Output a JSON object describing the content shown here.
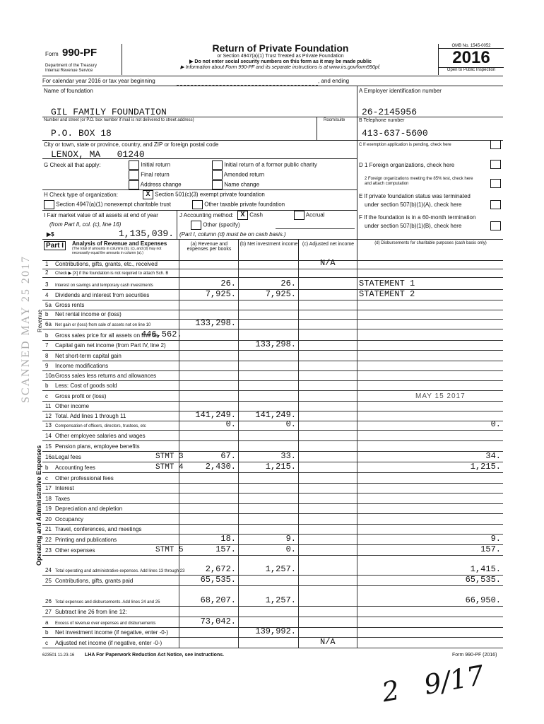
{
  "header": {
    "form_label": "Form",
    "form_number": "990-PF",
    "dept": "Department of the Treasury",
    "irs": "Internal Revenue Service",
    "title": "Return of Private Foundation",
    "subtitle": "or Section 4947(a)(1) Trust Treated as Private Foundation",
    "note1": "▶ Do not enter social security numbers on this form as it may be made public",
    "note2": "▶ Information about Form 990-PF and its separate instructions is at www.irs.gov/form990pf.",
    "omb": "OMB No. 1545-0052",
    "year": "2016",
    "open": "Open to Public Inspection",
    "calendar": "For calendar year 2016 or tax year beginning",
    "and_ending": ", and ending"
  },
  "entity": {
    "name_label": "Name of foundation",
    "name": "GIL FAMILY FOUNDATION",
    "street_label": "Number and street (or P.O. box number if mail is not delivered to street address)",
    "room_label": "Room/suite",
    "street": "P.O. BOX 18",
    "city_label": "City or town, state or province, country, and ZIP or foreign postal code",
    "city": "LENOX, MA   01240",
    "ein_label": "A  Employer identification number",
    "ein": "26-2145956",
    "phone_label": "B  Telephone number",
    "phone": "413-637-5600",
    "c_label": "C  If exemption application is pending, check here",
    "d1_label": "D  1  Foreign organizations, check here",
    "d2_label": "2  Foreign organizations meeting the 85% test, check here and attach computation",
    "e_label1": "E  If private foundation status was terminated",
    "e_label2": "under section 507(b)(1)(A), check here",
    "f_label1": "F  If the foundation is in a 60-month termination",
    "f_label2": "under section 507(b)(1)(B), check here"
  },
  "g": {
    "label": "G  Check all that apply:",
    "items": [
      "Initial return",
      "Final return",
      "Address change",
      "Initial return of a former public charity",
      "Amended return",
      "Name change"
    ]
  },
  "h": {
    "label": "H  Check type of organization:",
    "opt1": "Section 501(c)(3) exempt private foundation",
    "opt1_mark": "X",
    "opt2": "Section 4947(a)(1) nonexempt charitable trust",
    "opt3": "Other taxable private foundation"
  },
  "i": {
    "label": "I  Fair market value of all assets at end of year",
    "sub": "(from Part II, col. (c), line 16)",
    "prefix": "▶$",
    "value": "1,135,039."
  },
  "j": {
    "label": "J  Accounting method:",
    "cash": "Cash",
    "cash_mark": "X",
    "accrual": "Accrual",
    "other": "Other (specify)",
    "note": "(Part I, column (d) must be on cash basis.)"
  },
  "part1": {
    "tag": "Part I",
    "title": "Analysis of Revenue and Expenses",
    "sub": "(The total of amounts in columns (b), (c), and (d) may not necessarily equal the amounts in column (a).)",
    "col_a": "(a) Revenue and expenses per books",
    "col_b": "(b) Net investment income",
    "col_c": "(c) Adjusted net income",
    "col_d": "(d) Disbursements for charitable purposes (cash basis only)",
    "side_revenue": "Revenue",
    "side_expenses": "Operating and Administrative Expenses",
    "rows": [
      {
        "n": "1",
        "label": "Contributions, gifts, grants, etc., received",
        "a": "",
        "b": "",
        "c": "N/A",
        "d": ""
      },
      {
        "n": "2",
        "label": "Check ▶ [X] if the foundation is not required to attach Sch. B",
        "a": "",
        "b": "",
        "c": "",
        "d": ""
      },
      {
        "n": "3",
        "label": "Interest on savings and temporary cash investments",
        "a": "26.",
        "b": "26.",
        "c": "",
        "d": "STATEMENT 1"
      },
      {
        "n": "4",
        "label": "Dividends and interest from securities",
        "a": "7,925.",
        "b": "7,925.",
        "c": "",
        "d": "STATEMENT 2"
      },
      {
        "n": "5a",
        "label": "Gross rents",
        "a": "",
        "b": "",
        "c": "",
        "d": ""
      },
      {
        "n": "b",
        "label": "Net rental income or (loss)",
        "a": "",
        "b": "",
        "c": "",
        "d": ""
      },
      {
        "n": "6a",
        "label": "Net gain or (loss) from sale of assets not on line 10",
        "a": "133,298.",
        "b": "",
        "c": "",
        "d": ""
      },
      {
        "n": "b",
        "label": "Gross sales price for all assets on line 6a",
        "inline": "446,562.",
        "a": "",
        "b": "",
        "c": "",
        "d": ""
      },
      {
        "n": "7",
        "label": "Capital gain net income (from Part IV, line 2)",
        "a": "",
        "b": "133,298.",
        "c": "",
        "d": ""
      },
      {
        "n": "8",
        "label": "Net short-term capital gain",
        "a": "",
        "b": "",
        "c": "",
        "d": ""
      },
      {
        "n": "9",
        "label": "Income modifications",
        "a": "",
        "b": "",
        "c": "",
        "d": ""
      },
      {
        "n": "10a",
        "label": "Gross sales less returns and allowances",
        "a": "",
        "b": "",
        "c": "",
        "d": ""
      },
      {
        "n": "b",
        "label": "Less: Cost of goods sold",
        "a": "",
        "b": "",
        "c": "",
        "d": ""
      },
      {
        "n": "c",
        "label": "Gross profit or (loss)",
        "a": "",
        "b": "",
        "c": "",
        "d": ""
      },
      {
        "n": "11",
        "label": "Other income",
        "a": "",
        "b": "",
        "c": "",
        "d": ""
      },
      {
        "n": "12",
        "label": "Total. Add lines 1 through 11",
        "a": "141,249.",
        "b": "141,249.",
        "c": "",
        "d": ""
      },
      {
        "n": "13",
        "label": "Compensation of officers, directors, trustees, etc",
        "a": "0.",
        "b": "0.",
        "c": "",
        "d": "0."
      },
      {
        "n": "14",
        "label": "Other employee salaries and wages",
        "a": "",
        "b": "",
        "c": "",
        "d": ""
      },
      {
        "n": "15",
        "label": "Pension plans, employee benefits",
        "a": "",
        "b": "",
        "c": "",
        "d": ""
      },
      {
        "n": "16a",
        "label": "Legal fees",
        "stmt": "STMT 3",
        "a": "67.",
        "b": "33.",
        "c": "",
        "d": "34."
      },
      {
        "n": "b",
        "label": "Accounting fees",
        "stmt": "STMT 4",
        "a": "2,430.",
        "b": "1,215.",
        "c": "",
        "d": "1,215."
      },
      {
        "n": "c",
        "label": "Other professional fees",
        "a": "",
        "b": "",
        "c": "",
        "d": ""
      },
      {
        "n": "17",
        "label": "Interest",
        "a": "",
        "b": "",
        "c": "",
        "d": ""
      },
      {
        "n": "18",
        "label": "Taxes",
        "a": "",
        "b": "",
        "c": "",
        "d": ""
      },
      {
        "n": "19",
        "label": "Depreciation and depletion",
        "a": "",
        "b": "",
        "c": "",
        "d": ""
      },
      {
        "n": "20",
        "label": "Occupancy",
        "a": "",
        "b": "",
        "c": "",
        "d": ""
      },
      {
        "n": "21",
        "label": "Travel, conferences, and meetings",
        "a": "",
        "b": "",
        "c": "",
        "d": ""
      },
      {
        "n": "22",
        "label": "Printing and publications",
        "a": "18.",
        "b": "9.",
        "c": "",
        "d": "9."
      },
      {
        "n": "23",
        "label": "Other expenses",
        "stmt": "STMT 5",
        "a": "157.",
        "b": "0.",
        "c": "",
        "d": "157."
      },
      {
        "n": "24",
        "label": "Total operating and administrative expenses. Add lines 13 through 23",
        "a": "2,672.",
        "b": "1,257.",
        "c": "",
        "d": "1,415."
      },
      {
        "n": "25",
        "label": "Contributions, gifts, grants paid",
        "a": "65,535.",
        "b": "",
        "c": "",
        "d": "65,535."
      },
      {
        "n": "26",
        "label": "Total expenses and disbursements. Add lines 24 and 25",
        "a": "68,207.",
        "b": "1,257.",
        "c": "",
        "d": "66,950."
      },
      {
        "n": "27",
        "label": "Subtract line 26 from line 12:",
        "a": "",
        "b": "",
        "c": "",
        "d": ""
      },
      {
        "n": "a",
        "label": "Excess of revenue over expenses and disbursements",
        "a": "73,042.",
        "b": "",
        "c": "",
        "d": ""
      },
      {
        "n": "b",
        "label": "Net investment income (if negative, enter -0-)",
        "a": "",
        "b": "139,992.",
        "c": "",
        "d": ""
      },
      {
        "n": "c",
        "label": "Adjusted net income (if negative, enter -0-)",
        "a": "",
        "b": "",
        "c": "N/A",
        "d": ""
      }
    ]
  },
  "footer": {
    "code": "623501 11-23-16",
    "lha": "LHA  For Paperwork Reduction Act Notice, see instructions.",
    "form": "Form 990-PF (2016)"
  },
  "stamps": {
    "scanned": "SCANNED MAY 25 2017",
    "received": "MAY 15 2017",
    "handwriting": "2   9/17"
  }
}
